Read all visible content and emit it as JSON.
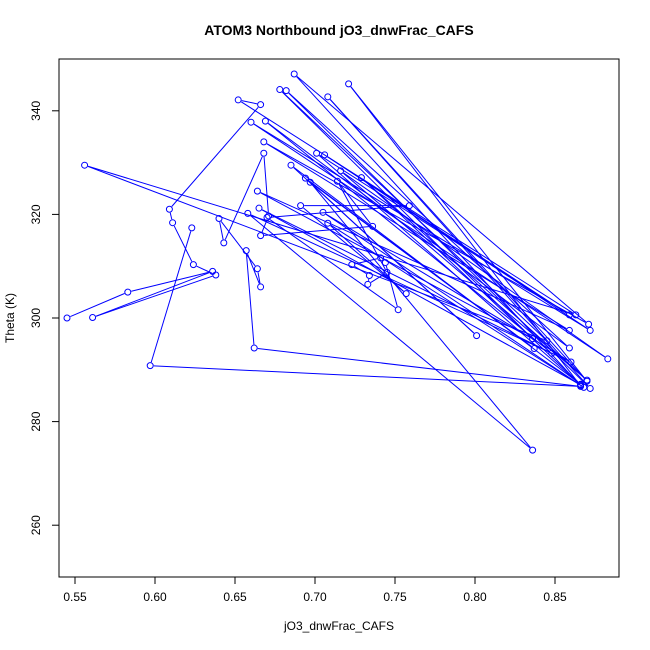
{
  "chart_data": {
    "type": "line",
    "title": "ATOM3 Northbound jO3_dnwFrac_CAFS",
    "xlabel": "jO3_dnwFrac_CAFS",
    "ylabel": "Theta (K)",
    "xlim": [
      0.54,
      0.89
    ],
    "ylim": [
      250,
      350
    ],
    "xticks": [
      "0.55",
      "0.60",
      "0.65",
      "0.70",
      "0.75",
      "0.80",
      "0.85"
    ],
    "yticks": [
      "260",
      "280",
      "300",
      "320",
      "340"
    ],
    "grid": false,
    "series": [
      {
        "color": "#0000ff",
        "marker": "open-circle",
        "points": [
          [
            0.545,
            300.0
          ],
          [
            0.583,
            305.0
          ],
          [
            0.636,
            309.0
          ],
          [
            0.561,
            300.1
          ],
          [
            0.638,
            308.3
          ],
          [
            0.624,
            310.3
          ],
          [
            0.611,
            318.4
          ],
          [
            0.609,
            321.0
          ],
          [
            0.666,
            341.2
          ],
          [
            0.652,
            342.1
          ],
          [
            0.863,
            300.6
          ],
          [
            0.556,
            329.5
          ],
          [
            0.845,
            295.6
          ],
          [
            0.678,
            344.1
          ],
          [
            0.836,
            296.0
          ],
          [
            0.664,
            324.5
          ],
          [
            0.859,
            297.6
          ],
          [
            0.668,
            334.0
          ],
          [
            0.871,
            298.8
          ],
          [
            0.687,
            347.1
          ],
          [
            0.866,
            286.9
          ],
          [
            0.721,
            345.2
          ],
          [
            0.87,
            287.8
          ],
          [
            0.708,
            342.7
          ],
          [
            0.872,
            286.4
          ],
          [
            0.682,
            343.9
          ],
          [
            0.859,
            294.2
          ],
          [
            0.669,
            338.0
          ],
          [
            0.848,
            293.2
          ],
          [
            0.665,
            321.2
          ],
          [
            0.866,
            287.1
          ],
          [
            0.701,
            331.8
          ],
          [
            0.859,
            300.6
          ],
          [
            0.706,
            331.5
          ],
          [
            0.872,
            297.6
          ],
          [
            0.66,
            337.8
          ],
          [
            0.883,
            292.1
          ],
          [
            0.716,
            328.4
          ],
          [
            0.87,
            288.0
          ],
          [
            0.729,
            327.1
          ],
          [
            0.866,
            287.2
          ],
          [
            0.685,
            329.5
          ],
          [
            0.801,
            296.6
          ],
          [
            0.694,
            327.0
          ],
          [
            0.837,
            294.1
          ],
          [
            0.697,
            326.2
          ],
          [
            0.836,
            274.5
          ],
          [
            0.658,
            320.2
          ],
          [
            0.86,
            291.5
          ],
          [
            0.705,
            320.4
          ],
          [
            0.868,
            286.6
          ],
          [
            0.708,
            318.3
          ],
          [
            0.757,
            304.7
          ],
          [
            0.691,
            321.7
          ],
          [
            0.759,
            321.7
          ],
          [
            0.67,
            319.4
          ],
          [
            0.752,
            301.6
          ],
          [
            0.744,
            310.7
          ],
          [
            0.741,
            311.6
          ],
          [
            0.723,
            310.3
          ],
          [
            0.734,
            308.2
          ],
          [
            0.733,
            306.5
          ],
          [
            0.745,
            308.8
          ],
          [
            0.714,
            326.4
          ],
          [
            0.736,
            317.7
          ],
          [
            0.666,
            315.9
          ],
          [
            0.671,
            319.7
          ],
          [
            0.668,
            331.8
          ],
          [
            0.643,
            314.5
          ],
          [
            0.64,
            319.2
          ],
          [
            0.664,
            309.5
          ],
          [
            0.666,
            306.0
          ],
          [
            0.657,
            313.0
          ],
          [
            0.662,
            294.2
          ],
          [
            0.866,
            286.8
          ],
          [
            0.597,
            290.8
          ],
          [
            0.623,
            317.4
          ]
        ]
      }
    ]
  }
}
